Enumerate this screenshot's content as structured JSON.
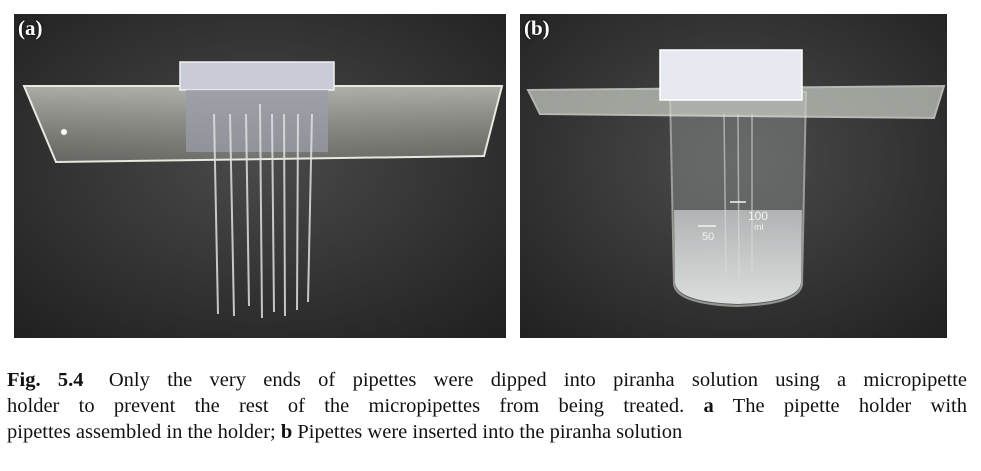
{
  "figure": {
    "panels": [
      {
        "label": "(a)"
      },
      {
        "label": "(b)"
      }
    ],
    "beaker_markings": {
      "volume_100": "100",
      "unit": "ml",
      "volume_50": "50"
    },
    "caption": {
      "figure_number": "Fig. 5.4",
      "line1": "Only the very ends of pipettes were dipped into piranha solution using a micropipette",
      "line2_start": "holder to prevent the rest of the micropipettes from being treated.",
      "marker_a": "a",
      "line2_end": "The pipette holder with",
      "line3_start": "pipettes assembled in the holder;",
      "marker_b": "b",
      "line3_end": "Pipettes were inserted into the piranha solution"
    }
  }
}
